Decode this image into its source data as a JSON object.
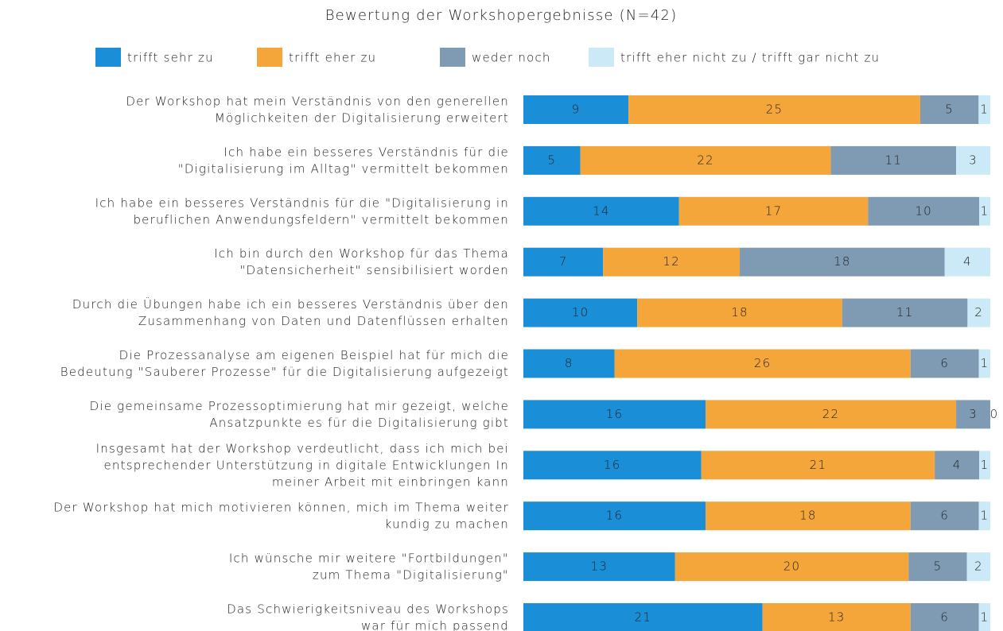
{
  "chart_data": {
    "type": "stacked-bar",
    "orientation": "horizontal",
    "stack": "percent",
    "title": "Bewertung der Workshopergebnisse (N=42)",
    "categories": [
      "Der Workshop hat mein Verständnis von den generellen\nMöglichkeiten der Digitalisierung erweitert",
      "Ich habe ein besseres Verständnis für die\n\"Digitalisierung im Alltag\" vermittelt bekommen",
      "Ich habe ein besseres Verständnis für die \"Digitalisierung in\nberuflichen Anwendungsfeldern\" vermittelt bekommen",
      "Ich bin durch den Workshop für das Thema\n\"Datensicherheit\" sensibilisiert worden",
      "Durch die Übungen habe ich ein besseres Verständnis über den\nZusammenhang von Daten und Datenflüssen erhalten",
      "Die Prozessanalyse am eigenen Beispiel hat für mich die\nBedeutung \"Sauberer Prozesse\" für die Digitalisierung aufgezeigt",
      "Die gemeinsame Prozessoptimierung hat mir gezeigt, welche\nAnsatzpunkte es für die Digitalisierung gibt",
      "Insgesamt hat der Workshop verdeutlicht, dass ich mich bei\nentsprechender Unterstützung in digitale Entwicklungen In\nmeiner Arbeit mit einbringen kann",
      "Der Workshop hat mich motivieren können, mich im Thema weiter\nkundig zu machen",
      "Ich wünsche mir weitere \"Fortbildungen\"\nzum Thema \"Digitalisierung\"",
      "Das Schwierigkeitsniveau des Workshops\nwar für mich passend"
    ],
    "series": [
      {
        "name": "trifft sehr zu",
        "color": "#1a8fd8",
        "values": [
          9,
          5,
          14,
          7,
          10,
          8,
          16,
          16,
          16,
          13,
          21
        ]
      },
      {
        "name": "trifft eher zu",
        "color": "#f4a63b",
        "values": [
          25,
          22,
          17,
          12,
          18,
          26,
          22,
          21,
          18,
          20,
          13
        ]
      },
      {
        "name": "weder noch",
        "color": "#7f9bb3",
        "values": [
          5,
          11,
          10,
          18,
          11,
          6,
          3,
          4,
          6,
          5,
          6
        ]
      },
      {
        "name": "trifft eher nicht zu / trifft gar nicht zu",
        "color": "#cce9f7",
        "values": [
          1,
          3,
          1,
          4,
          2,
          1,
          0,
          1,
          1,
          2,
          1
        ]
      }
    ],
    "legend": "top"
  }
}
